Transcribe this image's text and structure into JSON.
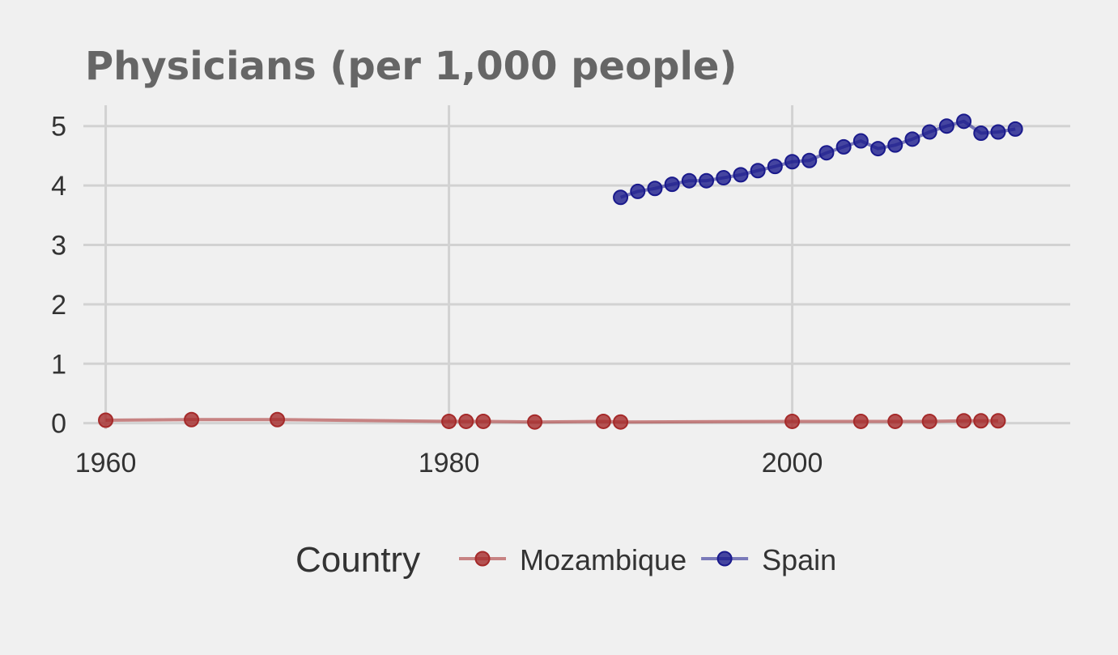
{
  "chart_data": {
    "type": "line",
    "title": "Physicians (per 1,000 people)",
    "xlabel": "",
    "ylabel": "",
    "xlim": [
      1958.7,
      2016.2
    ],
    "ylim": [
      -0.1,
      5.35
    ],
    "x_ticks": [
      1960,
      1980,
      2000
    ],
    "x_tick_labels": [
      "1960",
      "1980",
      "2000"
    ],
    "y_ticks": [
      0,
      1,
      2,
      3,
      4,
      5
    ],
    "y_tick_labels": [
      "0",
      "1",
      "2",
      "3",
      "4",
      "5"
    ],
    "grid": true,
    "legend": {
      "title": "Country",
      "position": "bottom"
    },
    "series": [
      {
        "name": "Mozambique",
        "color": "#a52a2a",
        "x": [
          1960,
          1965,
          1970,
          1980,
          1981,
          1982,
          1985,
          1989,
          1990,
          2000,
          2004,
          2006,
          2008,
          2010,
          2011,
          2012
        ],
        "y": [
          0.05,
          0.06,
          0.06,
          0.03,
          0.03,
          0.03,
          0.02,
          0.03,
          0.02,
          0.03,
          0.03,
          0.03,
          0.03,
          0.04,
          0.04,
          0.04
        ]
      },
      {
        "name": "Spain",
        "color": "#1a1a8c",
        "x": [
          1990,
          1991,
          1992,
          1993,
          1994,
          1995,
          1996,
          1997,
          1998,
          1999,
          2000,
          2001,
          2002,
          2003,
          2004,
          2005,
          2006,
          2007,
          2008,
          2009,
          2010,
          2011,
          2012,
          2013
        ],
        "y": [
          3.8,
          3.9,
          3.95,
          4.02,
          4.08,
          4.08,
          4.13,
          4.18,
          4.25,
          4.32,
          4.4,
          4.42,
          4.55,
          4.65,
          4.75,
          4.62,
          4.68,
          4.78,
          4.9,
          5.0,
          5.08,
          4.88,
          4.9,
          4.95
        ]
      }
    ]
  }
}
